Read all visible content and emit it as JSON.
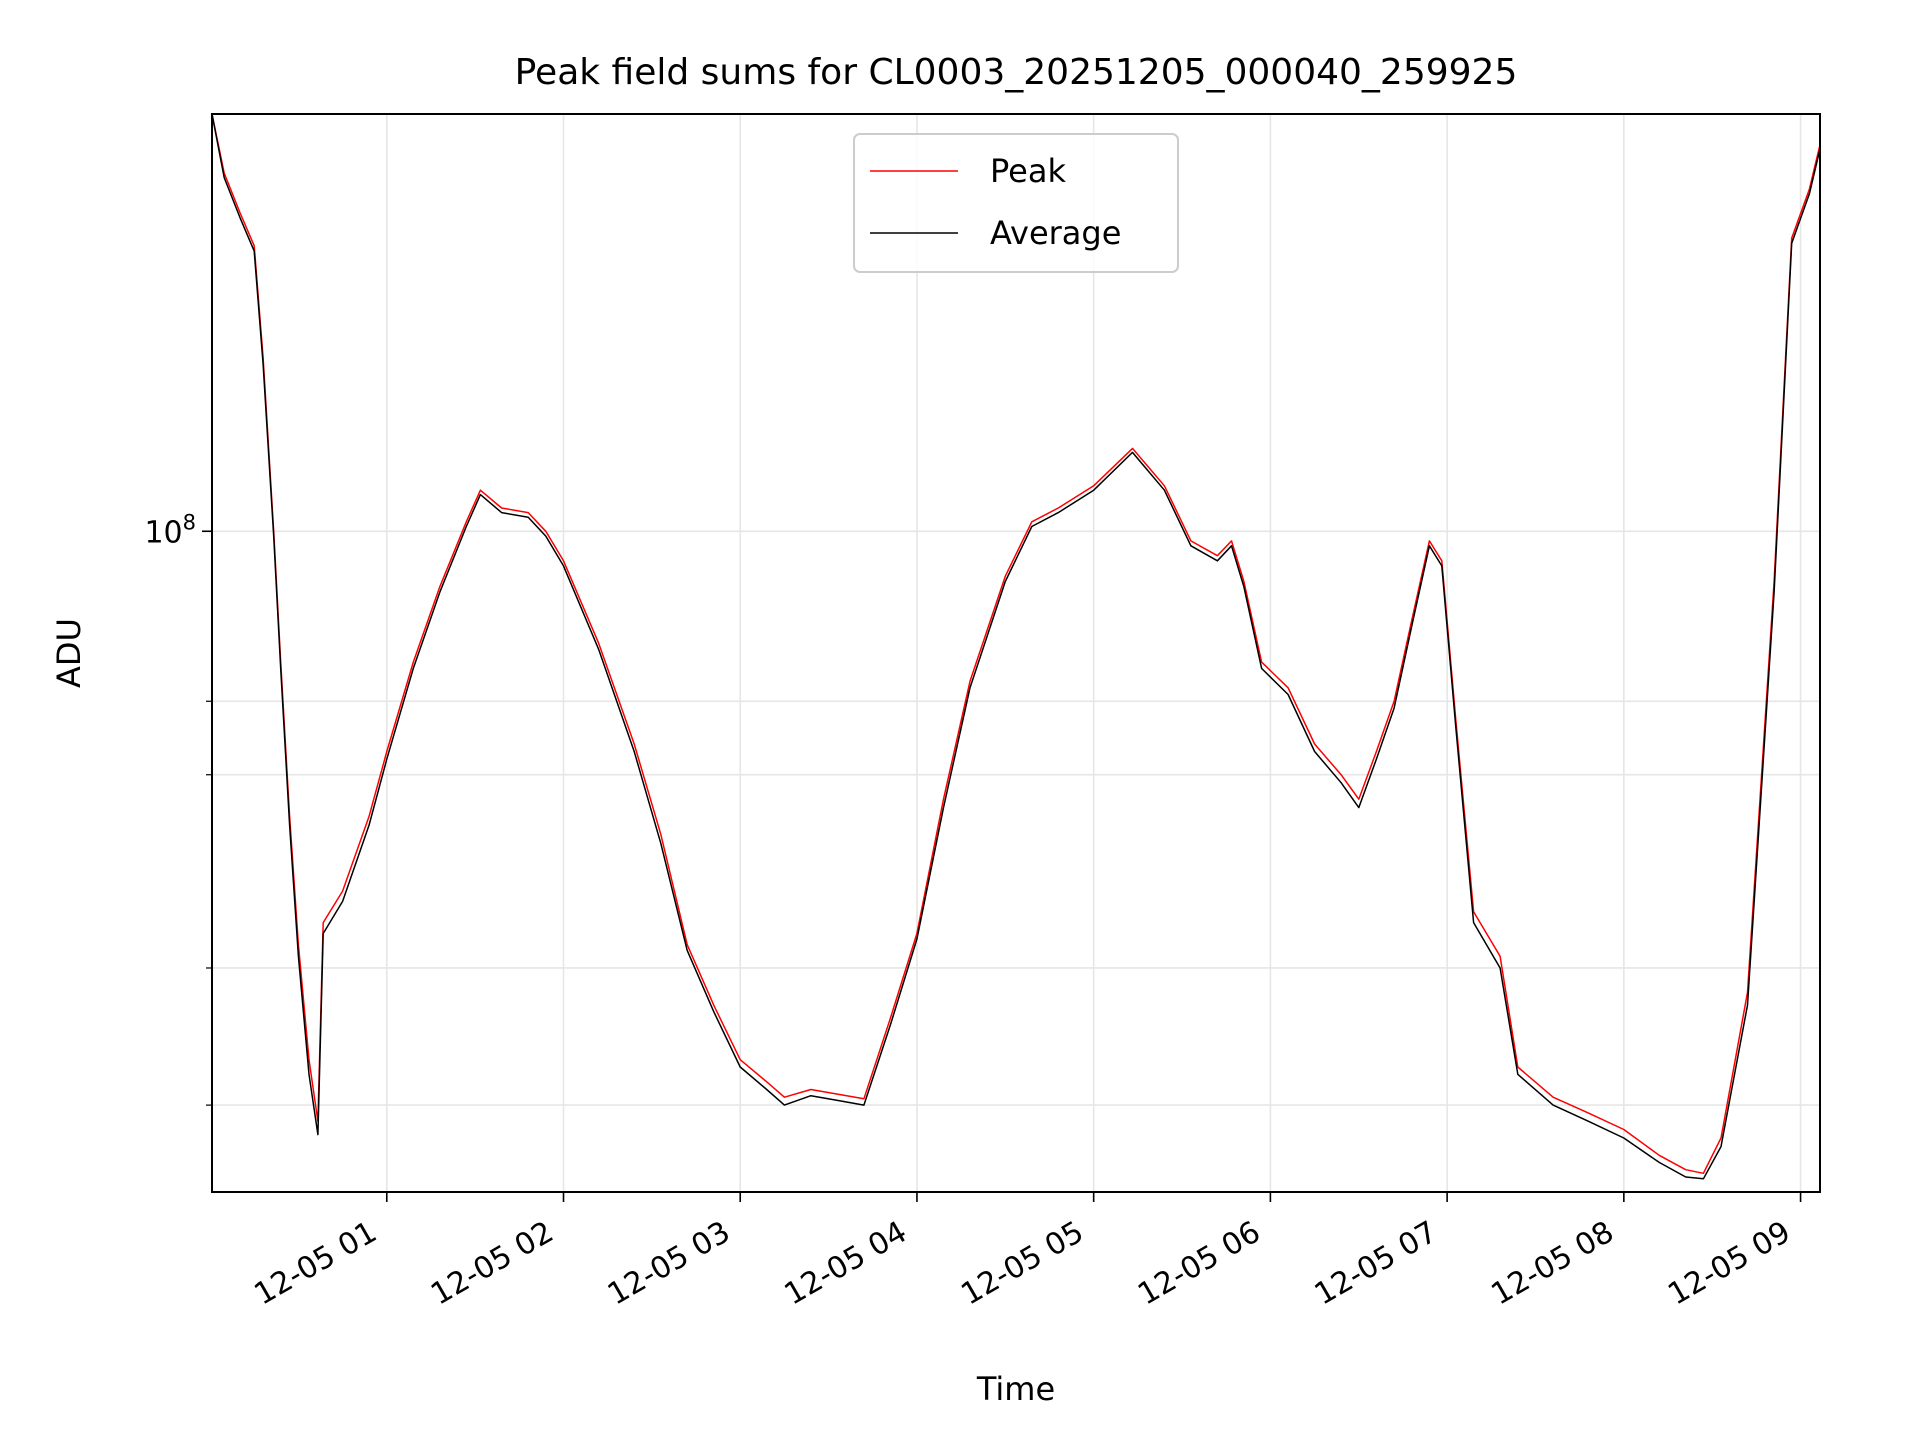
{
  "chart_data": {
    "type": "line",
    "title": "Peak field sums for CL0003_20251205_000040_259925",
    "xlabel": "Time",
    "ylabel": "ADU",
    "yscale": "log",
    "grid": true,
    "legend_location": "upper center",
    "xlim_hours": [
      0.011,
      9.11
    ],
    "ylim": [
      25000000,
      240000000
    ],
    "x_ticks": [
      {
        "value": 1,
        "label": "12-05 01"
      },
      {
        "value": 2,
        "label": "12-05 02"
      },
      {
        "value": 3,
        "label": "12-05 03"
      },
      {
        "value": 4,
        "label": "12-05 04"
      },
      {
        "value": 5,
        "label": "12-05 05"
      },
      {
        "value": 6,
        "label": "12-05 06"
      },
      {
        "value": 7,
        "label": "12-05 07"
      },
      {
        "value": 8,
        "label": "12-05 08"
      },
      {
        "value": 9,
        "label": "12-05 09"
      }
    ],
    "y_ticks_major": [
      {
        "value": 100000000,
        "base": "10",
        "exponent": "8"
      }
    ],
    "y_ticks_minor": [
      30000000,
      40000000,
      60000000,
      70000000
    ],
    "x_unit": "hours since 12-05 00:00",
    "series": [
      {
        "name": "Peak",
        "color": "#ff0000",
        "points": [
          [
            0.011,
            240000000
          ],
          [
            0.08,
            212000000
          ],
          [
            0.17,
            195000000
          ],
          [
            0.25,
            182000000
          ],
          [
            0.3,
            144000000
          ],
          [
            0.36,
            100000000
          ],
          [
            0.4,
            76000000
          ],
          [
            0.45,
            55000000
          ],
          [
            0.5,
            42000000
          ],
          [
            0.56,
            33000000
          ],
          [
            0.61,
            29000000
          ],
          [
            0.64,
            44000000
          ],
          [
            0.75,
            47000000
          ],
          [
            0.9,
            55000000
          ],
          [
            1.0,
            63000000
          ],
          [
            1.15,
            76000000
          ],
          [
            1.3,
            89000000
          ],
          [
            1.45,
            102000000
          ],
          [
            1.53,
            109000000
          ],
          [
            1.65,
            105000000
          ],
          [
            1.8,
            104000000
          ],
          [
            1.9,
            100000000
          ],
          [
            2.0,
            94000000
          ],
          [
            2.2,
            79000000
          ],
          [
            2.4,
            64000000
          ],
          [
            2.55,
            53000000
          ],
          [
            2.7,
            42000000
          ],
          [
            2.85,
            37000000
          ],
          [
            3.0,
            33000000
          ],
          [
            3.15,
            31500000
          ],
          [
            3.25,
            30500000
          ],
          [
            3.4,
            31000000
          ],
          [
            3.55,
            30700000
          ],
          [
            3.7,
            30400000
          ],
          [
            3.85,
            36000000
          ],
          [
            4.0,
            43000000
          ],
          [
            4.15,
            57000000
          ],
          [
            4.3,
            73000000
          ],
          [
            4.5,
            91000000
          ],
          [
            4.65,
            102000000
          ],
          [
            4.8,
            105000000
          ],
          [
            5.0,
            110000000
          ],
          [
            5.22,
            119000000
          ],
          [
            5.4,
            110000000
          ],
          [
            5.55,
            98000000
          ],
          [
            5.7,
            95000000
          ],
          [
            5.78,
            98000000
          ],
          [
            5.85,
            90000000
          ],
          [
            5.95,
            76000000
          ],
          [
            6.1,
            72000000
          ],
          [
            6.25,
            64000000
          ],
          [
            6.4,
            60000000
          ],
          [
            6.5,
            57000000
          ],
          [
            6.6,
            63000000
          ],
          [
            6.7,
            70000000
          ],
          [
            6.8,
            83000000
          ],
          [
            6.9,
            98000000
          ],
          [
            6.97,
            94000000
          ],
          [
            7.05,
            67000000
          ],
          [
            7.15,
            45000000
          ],
          [
            7.3,
            41000000
          ],
          [
            7.4,
            32500000
          ],
          [
            7.6,
            30500000
          ],
          [
            7.8,
            29500000
          ],
          [
            8.0,
            28500000
          ],
          [
            8.2,
            27000000
          ],
          [
            8.35,
            26200000
          ],
          [
            8.45,
            26000000
          ],
          [
            8.55,
            28000000
          ],
          [
            8.7,
            38000000
          ],
          [
            8.85,
            90000000
          ],
          [
            8.95,
            185000000
          ],
          [
            9.05,
            205000000
          ],
          [
            9.11,
            225000000
          ]
        ]
      },
      {
        "name": "Average",
        "color": "#000000",
        "points": [
          [
            0.011,
            240000000
          ],
          [
            0.08,
            210000000
          ],
          [
            0.17,
            193000000
          ],
          [
            0.25,
            180000000
          ],
          [
            0.3,
            142000000
          ],
          [
            0.36,
            99000000
          ],
          [
            0.4,
            75000000
          ],
          [
            0.45,
            54000000
          ],
          [
            0.5,
            41000000
          ],
          [
            0.56,
            32000000
          ],
          [
            0.61,
            28200000
          ],
          [
            0.64,
            43000000
          ],
          [
            0.75,
            46000000
          ],
          [
            0.9,
            54000000
          ],
          [
            1.0,
            62000000
          ],
          [
            1.15,
            75000000
          ],
          [
            1.3,
            88000000
          ],
          [
            1.45,
            101000000
          ],
          [
            1.53,
            108000000
          ],
          [
            1.65,
            104000000
          ],
          [
            1.8,
            103000000
          ],
          [
            1.9,
            99000000
          ],
          [
            2.0,
            93000000
          ],
          [
            2.2,
            78000000
          ],
          [
            2.4,
            63000000
          ],
          [
            2.55,
            52000000
          ],
          [
            2.7,
            41500000
          ],
          [
            2.85,
            36500000
          ],
          [
            3.0,
            32500000
          ],
          [
            3.15,
            31000000
          ],
          [
            3.25,
            30000000
          ],
          [
            3.4,
            30600000
          ],
          [
            3.55,
            30300000
          ],
          [
            3.7,
            30000000
          ],
          [
            3.85,
            35500000
          ],
          [
            4.0,
            42500000
          ],
          [
            4.15,
            56000000
          ],
          [
            4.3,
            72000000
          ],
          [
            4.5,
            90000000
          ],
          [
            4.65,
            101000000
          ],
          [
            4.8,
            104000000
          ],
          [
            5.0,
            109000000
          ],
          [
            5.22,
            118000000
          ],
          [
            5.4,
            109000000
          ],
          [
            5.55,
            97000000
          ],
          [
            5.7,
            94000000
          ],
          [
            5.78,
            97000000
          ],
          [
            5.85,
            89000000
          ],
          [
            5.95,
            75000000
          ],
          [
            6.1,
            71000000
          ],
          [
            6.25,
            63000000
          ],
          [
            6.4,
            59000000
          ],
          [
            6.5,
            56000000
          ],
          [
            6.6,
            62000000
          ],
          [
            6.7,
            69000000
          ],
          [
            6.8,
            82000000
          ],
          [
            6.9,
            97000000
          ],
          [
            6.97,
            93000000
          ],
          [
            7.05,
            66000000
          ],
          [
            7.15,
            44000000
          ],
          [
            7.3,
            40000000
          ],
          [
            7.4,
            32000000
          ],
          [
            7.6,
            30000000
          ],
          [
            7.8,
            29000000
          ],
          [
            8.0,
            28000000
          ],
          [
            8.2,
            26600000
          ],
          [
            8.35,
            25800000
          ],
          [
            8.45,
            25700000
          ],
          [
            8.55,
            27500000
          ],
          [
            8.7,
            37000000
          ],
          [
            8.85,
            88000000
          ],
          [
            8.95,
            183000000
          ],
          [
            9.05,
            203000000
          ],
          [
            9.11,
            223000000
          ]
        ]
      }
    ]
  }
}
